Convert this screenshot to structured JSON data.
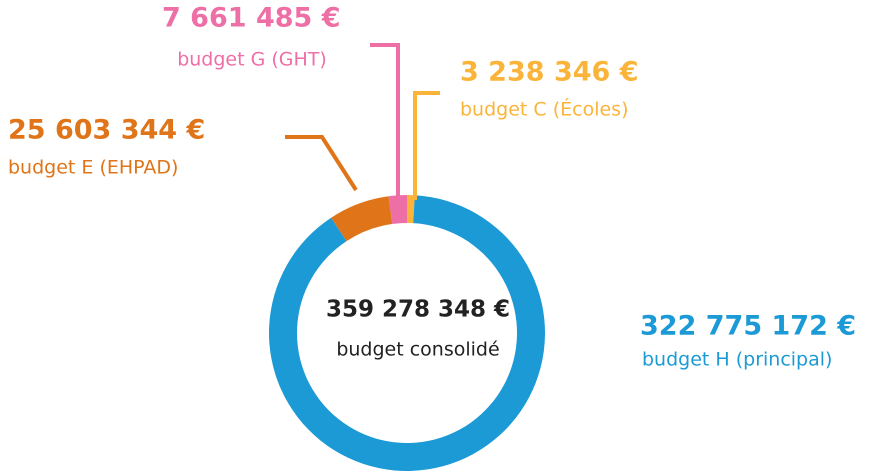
{
  "chart_data": {
    "type": "donut",
    "center_value": "359 278 348 €",
    "center_label": "budget consolidé",
    "categories": [
      "budget C (Écoles)",
      "budget H (principal)",
      "budget E (EHPAD)",
      "budget G (GHT)"
    ],
    "values": [
      3238346,
      322775172,
      25603344,
      7661485
    ],
    "value_labels": [
      "3 238 346 €",
      "322 775 172 €",
      "25 603 344 €",
      "7 661 485 €"
    ],
    "colors": [
      "#fbb43a",
      "#1b9ad6",
      "#e07418",
      "#ee6fa6"
    ]
  }
}
